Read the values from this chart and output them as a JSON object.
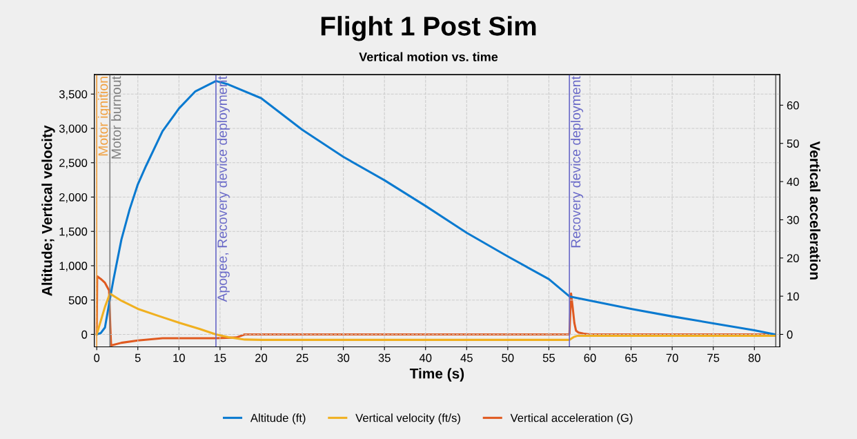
{
  "chart_data": {
    "type": "line",
    "title": "Flight 1 Post Sim",
    "subtitle": "Vertical motion vs. time",
    "xlabel": "Time (s)",
    "ylabel": "Altitude; Vertical velocity",
    "y2label": "Vertical acceleration",
    "xlim": [
      -0.3,
      83.1
    ],
    "xticks": [
      0,
      5,
      10,
      15,
      20,
      25,
      30,
      35,
      40,
      45,
      50,
      55,
      60,
      65,
      70,
      75,
      80
    ],
    "ylim": [
      -181,
      3783
    ],
    "yticks": [
      0,
      500,
      {
        "value": 1000,
        "label": "1,000"
      },
      {
        "value": 1500,
        "label": "1,500"
      },
      {
        "value": 2000,
        "label": "2,000"
      },
      {
        "value": 2500,
        "label": "2,500"
      },
      {
        "value": 3000,
        "label": "3,000"
      },
      {
        "value": 3500,
        "label": "3,500"
      }
    ],
    "y2lim": [
      -3.25,
      68
    ],
    "y2ticks": [
      0,
      10,
      20,
      30,
      40,
      50,
      60
    ],
    "grid": true,
    "legend": "bottom",
    "line_style": "solid",
    "series": [
      {
        "name": "Altitude (ft)",
        "color": "#0a7ad0",
        "x": [
          0,
          0.5,
          1,
          1.6,
          2,
          3,
          4,
          5,
          6,
          8,
          10,
          12,
          14.5,
          16,
          20,
          25,
          30,
          35,
          40,
          45,
          50,
          55,
          57.5,
          60,
          65,
          70,
          75,
          80,
          82.5
        ],
        "values": [
          0,
          20,
          100,
          513,
          775,
          1380,
          1820,
          2185,
          2455,
          2958,
          3290,
          3540,
          3690,
          3640,
          3440,
          2980,
          2585,
          2245,
          1870,
          1480,
          1135,
          805,
          553,
          493,
          372,
          262,
          161,
          60,
          0
        ]
      },
      {
        "name": "Vertical velocity (ft/s)",
        "color": "#f0b020",
        "x": [
          0,
          0.5,
          1,
          1.6,
          3,
          5,
          7.5,
          10,
          12.5,
          14.5,
          16,
          18,
          20,
          30,
          40,
          50,
          57.5,
          58,
          58.5,
          60,
          70,
          82.5
        ],
        "values": [
          0,
          200,
          400,
          594,
          490,
          372,
          270,
          171,
          80,
          0,
          -40,
          -75,
          -80,
          -80,
          -80,
          -80,
          -80,
          -40,
          -20,
          -20,
          -20,
          -20
        ]
      },
      {
        "name": "Vertical acceleration (G)",
        "color": "#e05a20",
        "axis": "y2",
        "x": [
          0,
          0.05,
          0.5,
          1,
          1.5,
          1.65,
          1.75,
          3,
          5,
          8,
          14.5,
          17,
          18,
          30,
          57.5,
          57.7,
          57.9,
          58.1,
          58.3,
          58.6,
          59.2,
          60,
          82.5
        ],
        "values": [
          0,
          15.2,
          14.5,
          13.5,
          11.5,
          2,
          -2.9,
          -2.2,
          -1.6,
          -1.0,
          -1.0,
          -0.8,
          0,
          0,
          0,
          10.7,
          7,
          3,
          1,
          0.5,
          0.2,
          0,
          0
        ]
      }
    ],
    "ref_lines": [
      {
        "axis": "x",
        "value": 0,
        "label": "Motor ignition",
        "color": "#f0a040"
      },
      {
        "axis": "x",
        "value": 1.6,
        "label": "Motor burnout",
        "color": "#808080"
      },
      {
        "axis": "x",
        "value": 14.5,
        "label": "Apogee, Recovery device deployment",
        "color": "#6a6ac8"
      },
      {
        "axis": "x",
        "value": 57.5,
        "label": "Recovery device deployment",
        "color": "#6a6ac8"
      },
      {
        "axis": "x",
        "value": 82.6,
        "color": "#606060"
      }
    ]
  }
}
